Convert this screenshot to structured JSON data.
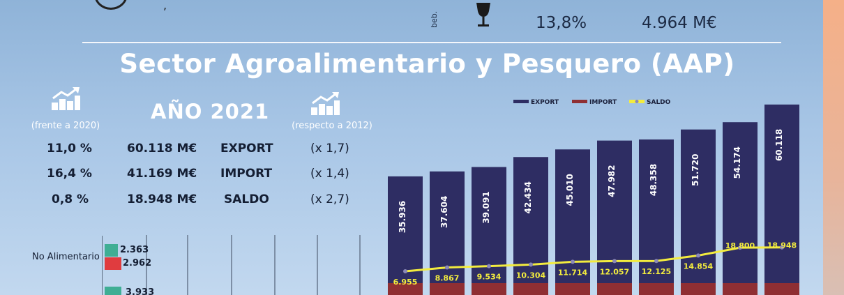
{
  "header": {
    "beb_label": "beb.",
    "drinks_pct": "13,8%",
    "drinks_value": "4.964 M€",
    "tick": ","
  },
  "title": "Sector Agroalimentario y Pesquero (AAP)",
  "summary": {
    "year_title": "AÑO 2021",
    "left_caption": "(frente a  2020)",
    "right_caption": "(respecto a 2012)",
    "rows": [
      {
        "pct": "11,0 %",
        "value": "60.118 M€",
        "label": "EXPORT",
        "mult": "(x 1,7)"
      },
      {
        "pct": "16,4 %",
        "value": "41.169 M€",
        "label": "IMPORT",
        "mult": "(x 1,4)"
      },
      {
        "pct": "0,8 %",
        "value": "18.948 M€",
        "label": "SALDO",
        "mult": "(x 2,7)"
      }
    ]
  },
  "colors": {
    "export": "#2e2d63",
    "import": "#8f2f33",
    "saldo": "#f3ec3e",
    "saldo_marker": "#8b88b8",
    "green": "#3fae94",
    "red": "#e03c3f"
  },
  "chart_data": [
    {
      "type": "bar",
      "legend": [
        "EXPORT",
        "IMPORT",
        "SALDO"
      ],
      "legend_position": "top",
      "series": [
        {
          "name": "EXPORT",
          "values": [
            35.936,
            37.604,
            39.091,
            42.434,
            45.01,
            47.982,
            48.358,
            51.72,
            54.174,
            60.118
          ],
          "labels": [
            "35.936",
            "37.604",
            "39.091",
            "42.434",
            "45.010",
            "47.982",
            "48.358",
            "51.720",
            "54.174",
            "60.118"
          ]
        },
        {
          "name": "SALDO",
          "values": [
            6.955,
            8.867,
            9.534,
            10.304,
            11.714,
            12.057,
            12.125,
            14.854,
            18.8,
            18.948
          ],
          "labels": [
            "6.955",
            "8.867",
            "9.534",
            "10.304",
            "11.714",
            "12.057",
            "12.125",
            "14.854",
            "18.800",
            "18.948"
          ]
        }
      ]
    },
    {
      "type": "bar",
      "orientation": "horizontal",
      "categories": [
        "No Alimentario"
      ],
      "series": [
        {
          "values": [
            2.363
          ],
          "labels": [
            "2.363"
          ]
        },
        {
          "values": [
            2.962
          ],
          "labels": [
            "2.962"
          ]
        }
      ],
      "partial_label": "3.933"
    }
  ]
}
